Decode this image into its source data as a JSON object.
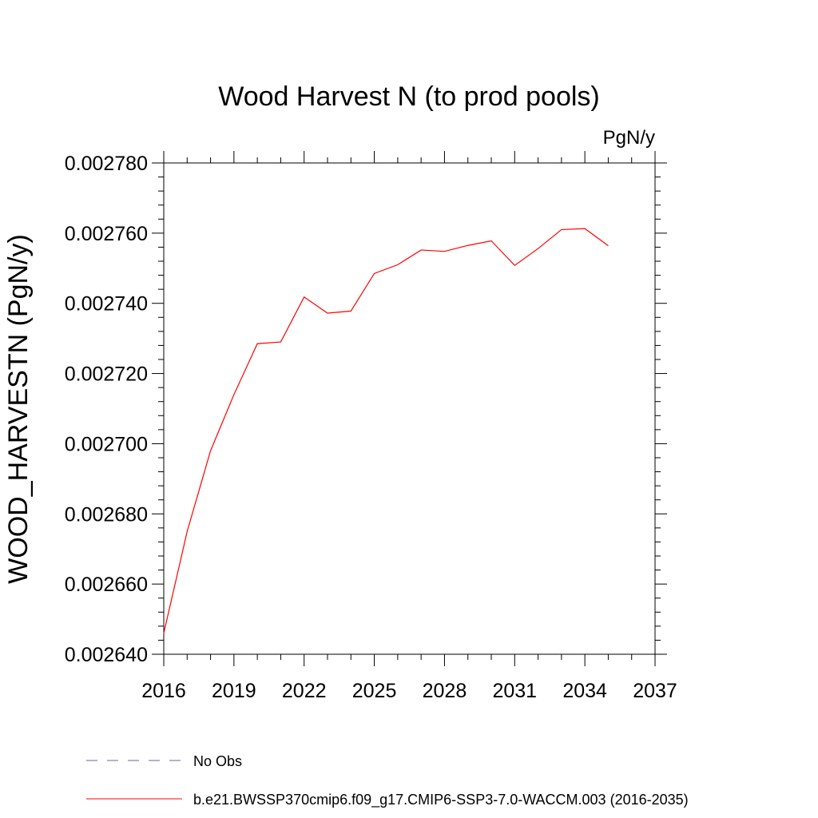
{
  "chart_data": {
    "type": "line",
    "title": "Wood Harvest N (to prod pools)",
    "units": "PgN/y",
    "ylabel": "WOOD_HARVESTN  (PgN/y)",
    "xlabel": "",
    "xlim": [
      2016,
      2037
    ],
    "ylim": [
      0.00264,
      0.00278
    ],
    "xticks": [
      "2016",
      "2019",
      "2022",
      "2025",
      "2028",
      "2031",
      "2034",
      "2037"
    ],
    "yticks": [
      "0.002640",
      "0.002660",
      "0.002680",
      "0.002700",
      "0.002720",
      "0.002740",
      "0.002760",
      "0.002780"
    ],
    "grid": false,
    "legend_position": "bottom",
    "series": [
      {
        "name": "No Obs",
        "color": "#6b5fa8",
        "dash": true,
        "x": [],
        "y": []
      },
      {
        "name": "b.e21.BWSSP370cmip6.f09_g17.CMIP6-SSP3-7.0-WACCM.003 (2016-2035)",
        "color": "#ff0000",
        "dash": false,
        "x": [
          2016,
          2017,
          2018,
          2019,
          2020,
          2021,
          2022,
          2023,
          2024,
          2025,
          2026,
          2027,
          2028,
          2029,
          2030,
          2031,
          2032,
          2033,
          2034,
          2035
        ],
        "y": [
          0.002646,
          0.002675,
          0.002698,
          0.002714,
          0.0027285,
          0.002729,
          0.0027418,
          0.0027372,
          0.0027378,
          0.0027485,
          0.002751,
          0.0027552,
          0.0027548,
          0.0027565,
          0.0027578,
          0.0027508,
          0.0027556,
          0.002761,
          0.0027613,
          0.0027564
        ]
      }
    ]
  }
}
